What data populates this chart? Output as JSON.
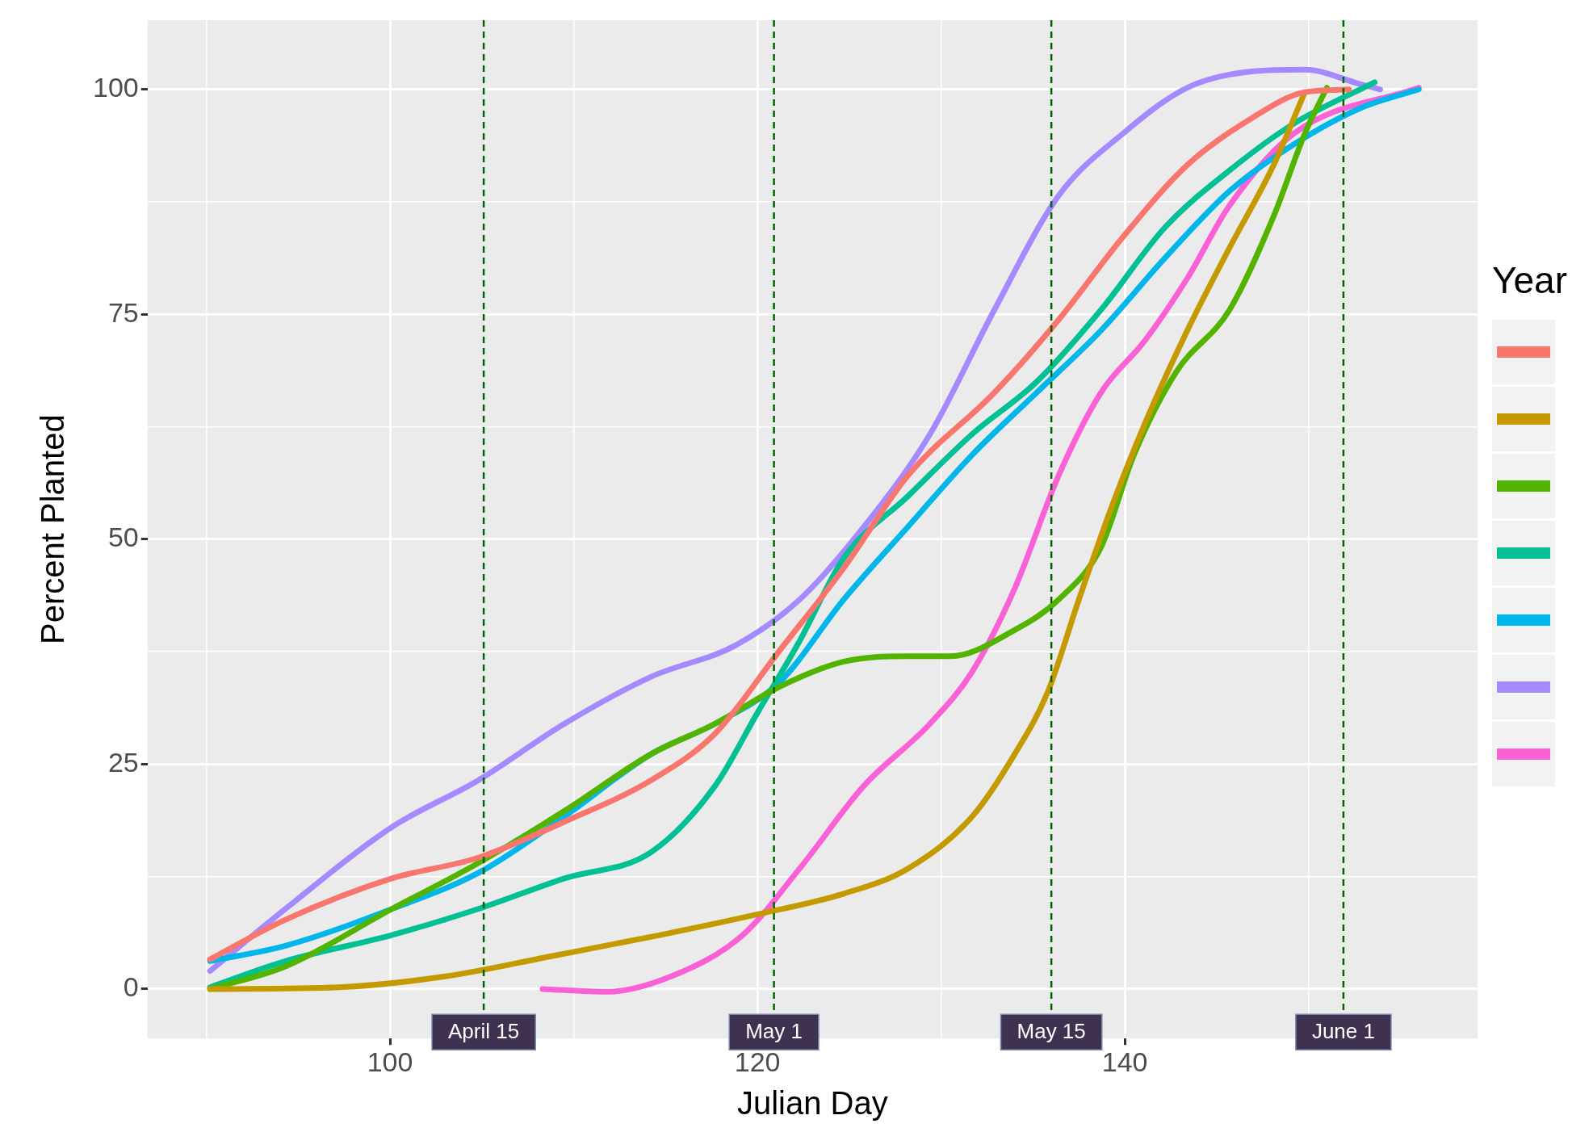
{
  "chart_data": {
    "type": "line",
    "xlabel": "Julian Day",
    "ylabel": "Percent Planted",
    "legend_title": "Year",
    "legend": "right",
    "grid": true,
    "marker": "none",
    "line_style": "solid",
    "xlim": [
      86.8,
      159.2
    ],
    "xticks": [
      {
        "value": 90,
        "label": null
      },
      100,
      {
        "value": 110,
        "label": null
      },
      120,
      {
        "value": 130,
        "label": null
      },
      140,
      {
        "value": 150,
        "label": null
      }
    ],
    "ylim": [
      -5.5,
      107.7
    ],
    "yticks": [
      0,
      {
        "value": 12.5,
        "label": null
      },
      25,
      {
        "value": 37.5,
        "label": null
      },
      50,
      {
        "value": 62.5,
        "label": null
      },
      75,
      {
        "value": 87.5,
        "label": null
      },
      100
    ],
    "ref_lines": [
      {
        "axis": "x",
        "value": 105.1,
        "label": "April 15",
        "color": "#006400",
        "line_style": "dashed"
      },
      {
        "axis": "x",
        "value": 120.9,
        "label": "May 1",
        "color": "#006400",
        "line_style": "dashed"
      },
      {
        "axis": "x",
        "value": 136.0,
        "label": "May 15",
        "color": "#006400",
        "line_style": "dashed"
      },
      {
        "axis": "x",
        "value": 151.9,
        "label": "June 1",
        "color": "#006400",
        "line_style": "dashed"
      }
    ],
    "series": [
      {
        "color": "#f8766d",
        "x": [
          90.2,
          94.3,
          100.1,
          104.8,
          109.5,
          114.2,
          117.7,
          121.2,
          124.7,
          128.2,
          132.9,
          136.4,
          139.9,
          143.4,
          146.9,
          149.8,
          152.2
        ],
        "values": [
          3.3,
          7.7,
          12.3,
          14.6,
          18.6,
          23.2,
          28.4,
          37.6,
          46.8,
          57.1,
          66.3,
          74.4,
          83.6,
          91.6,
          96.8,
          99.7,
          100
        ]
      },
      {
        "color": "#c49a00",
        "x": [
          90.2,
          97.2,
          103,
          108.9,
          114.7,
          120,
          124.7,
          128.2,
          131.7,
          134,
          135.8,
          137.5,
          139.3,
          141.1,
          143.4,
          145.7,
          148.1,
          149.8
        ],
        "values": [
          0,
          0.2,
          1.4,
          3.7,
          6,
          8.3,
          10.6,
          13.4,
          19.2,
          26.1,
          33,
          43.3,
          53.7,
          62.9,
          73.2,
          82.4,
          91.6,
          99.7
        ]
      },
      {
        "color": "#53b400",
        "x": [
          90.2,
          94.3,
          100.1,
          104.8,
          109.5,
          114.2,
          117.7,
          121.2,
          124.7,
          128.2,
          130.5,
          134,
          136.4,
          138.7,
          140.5,
          142.8,
          145.7,
          148.1,
          149.8,
          151
        ],
        "values": [
          0,
          2.5,
          8.9,
          14,
          19.8,
          26.1,
          29.5,
          33.6,
          36.4,
          37,
          37,
          39.9,
          43.3,
          49.1,
          59.4,
          68.6,
          75.5,
          85.9,
          95.1,
          100.2
        ]
      },
      {
        "color": "#00c094",
        "x": [
          90.2,
          94.3,
          100.1,
          104.8,
          109.5,
          114.2,
          117.7,
          120,
          122.3,
          124.7,
          128.2,
          131.7,
          135.2,
          138.7,
          142.2,
          145.7,
          149.2,
          153.6
        ],
        "values": [
          0.2,
          3.1,
          6,
          8.9,
          12.3,
          15.2,
          22.6,
          30.7,
          38.7,
          47.9,
          54.8,
          61.7,
          67.5,
          75.5,
          84.7,
          91,
          96.2,
          100.8
        ]
      },
      {
        "color": "#00b6eb",
        "x": [
          90.2,
          94.3,
          100.1,
          104.8,
          109.5,
          114.2,
          117.7,
          121.2,
          124.7,
          128.2,
          131.7,
          135.2,
          138.7,
          142.2,
          145.7,
          149.2,
          152.8,
          156
        ],
        "values": [
          3.1,
          4.8,
          8.9,
          12.9,
          19.2,
          26.1,
          29.5,
          34.1,
          43.3,
          51.4,
          59.4,
          66.3,
          73.2,
          81.3,
          88.7,
          93.9,
          97.9,
          100
        ]
      },
      {
        "color": "#a58aff",
        "x": [
          90.2,
          94.3,
          100.1,
          104.8,
          109.5,
          114.2,
          118.8,
          122.3,
          125.8,
          129.4,
          132.9,
          136.4,
          139.9,
          143.4,
          146.9,
          149.8,
          152.8,
          153.9
        ],
        "values": [
          2,
          8.9,
          18,
          23.2,
          29.5,
          34.7,
          38.2,
          43.3,
          51.4,
          61.7,
          75.5,
          88.2,
          95.1,
          100.2,
          102,
          102.2,
          100.6,
          100
        ]
      },
      {
        "color": "#fb61d7",
        "x": [
          108.3,
          111.8,
          115.3,
          119.2,
          122.3,
          125.8,
          129.4,
          131.7,
          134,
          136.4,
          138.7,
          141.1,
          143.4,
          145.7,
          149.2,
          156
        ],
        "values": [
          0,
          -0.3,
          1.4,
          6,
          13.4,
          22.6,
          29.5,
          35.3,
          44.5,
          57.1,
          66.3,
          72.1,
          79,
          87.1,
          95.1,
          100.2
        ]
      }
    ]
  }
}
